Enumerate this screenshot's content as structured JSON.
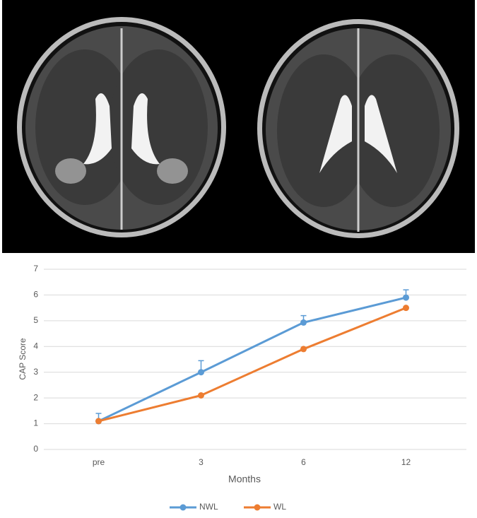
{
  "chart_data": {
    "type": "line",
    "x_label": "Months",
    "y_label": "CAP Score",
    "categories": [
      "pre",
      "3",
      "6",
      "12"
    ],
    "series": [
      {
        "name": "NWL",
        "color": "#5b9bd5",
        "values": [
          1.1,
          3.0,
          4.93,
          5.9
        ],
        "errors": [
          0.3,
          0.45,
          0.27,
          0.3
        ]
      },
      {
        "name": "WL",
        "color": "#ed7d31",
        "values": [
          1.1,
          2.1,
          3.9,
          5.5
        ]
      }
    ],
    "ylim": [
      0,
      7
    ],
    "yticks": [
      0,
      1,
      2,
      3,
      4,
      5,
      6,
      7
    ],
    "grid": true,
    "legend": "bottom"
  }
}
